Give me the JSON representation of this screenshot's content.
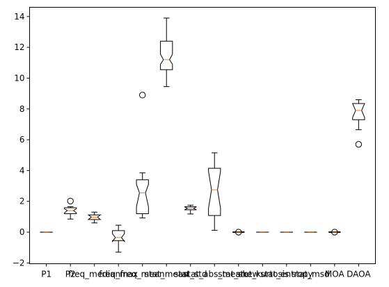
{
  "chart_data": {
    "type": "boxplot",
    "notched": true,
    "title": "",
    "xlabel": "",
    "ylabel": "",
    "ylim": [
      -2.05,
      14.6
    ],
    "yticks": [
      -2,
      0,
      2,
      4,
      6,
      8,
      10,
      12,
      14
    ],
    "colors": {
      "box": "#000000",
      "median": "#ff7f0e",
      "flier": "#000000",
      "background": "#ffffff"
    },
    "categories": [
      "P1",
      "P2",
      "freq_median",
      "freq_max",
      "freq_mean",
      "stat_mean",
      "stat_std",
      "stat_abs_mean",
      "stat_skew",
      "stat_kurtosis",
      "stat_entropy",
      "stat_msd",
      "MOA",
      "DAOA"
    ],
    "boxes": [
      {
        "whislo": -0.01,
        "q1": -0.005,
        "med": 0.0,
        "q3": 0.005,
        "whishi": 0.01,
        "notchlo": -0.003,
        "notchhi": 0.003,
        "fliers": []
      },
      {
        "whislo": 0.85,
        "q1": 1.2,
        "med": 1.4,
        "q3": 1.58,
        "whishi": 1.65,
        "notchlo": 1.25,
        "notchhi": 1.52,
        "fliers": [
          2.02
        ]
      },
      {
        "whislo": 0.6,
        "q1": 0.82,
        "med": 0.98,
        "q3": 1.12,
        "whishi": 1.3,
        "notchlo": 0.82,
        "notchhi": 1.12,
        "fliers": []
      },
      {
        "whislo": -1.3,
        "q1": -0.55,
        "med": -0.35,
        "q3": 0.1,
        "whishi": 0.45,
        "notchlo": -0.6,
        "notchhi": -0.1,
        "fliers": []
      },
      {
        "whislo": 0.92,
        "q1": 1.2,
        "med": 2.55,
        "q3": 3.4,
        "whishi": 3.85,
        "notchlo": 1.65,
        "notchhi": 3.1,
        "fliers": [
          8.9
        ]
      },
      {
        "whislo": 9.45,
        "q1": 10.55,
        "med": 11.2,
        "q3": 12.4,
        "whishi": 13.9,
        "notchlo": 10.9,
        "notchhi": 11.55,
        "fliers": []
      },
      {
        "whislo": 1.18,
        "q1": 1.45,
        "med": 1.55,
        "q3": 1.65,
        "whishi": 1.75,
        "notchlo": 1.45,
        "notchhi": 1.65,
        "fliers": []
      },
      {
        "whislo": 0.12,
        "q1": 1.08,
        "med": 2.75,
        "q3": 4.15,
        "whishi": 5.15,
        "notchlo": 1.55,
        "notchhi": 3.95,
        "fliers": []
      },
      {
        "whislo": -0.02,
        "q1": -0.02,
        "med": 0.0,
        "q3": 0.02,
        "whishi": 0.02,
        "notchlo": -0.02,
        "notchhi": 0.02,
        "fliers": [
          0.0
        ]
      },
      {
        "whislo": -0.01,
        "q1": -0.005,
        "med": 0.0,
        "q3": 0.005,
        "whishi": 0.01,
        "notchlo": -0.003,
        "notchhi": 0.003,
        "fliers": []
      },
      {
        "whislo": -0.01,
        "q1": -0.005,
        "med": 0.0,
        "q3": 0.005,
        "whishi": 0.01,
        "notchlo": -0.003,
        "notchhi": 0.003,
        "fliers": []
      },
      {
        "whislo": -0.01,
        "q1": -0.005,
        "med": 0.0,
        "q3": 0.005,
        "whishi": 0.01,
        "notchlo": -0.003,
        "notchhi": 0.003,
        "fliers": []
      },
      {
        "whislo": -0.02,
        "q1": -0.02,
        "med": 0.0,
        "q3": 0.02,
        "whishi": 0.02,
        "notchlo": -0.02,
        "notchhi": 0.02,
        "fliers": [
          0.0
        ]
      },
      {
        "whislo": 6.65,
        "q1": 7.3,
        "med": 7.9,
        "q3": 8.35,
        "whishi": 8.6,
        "notchlo": 7.45,
        "notchhi": 8.35,
        "fliers": [
          5.7
        ]
      }
    ]
  }
}
